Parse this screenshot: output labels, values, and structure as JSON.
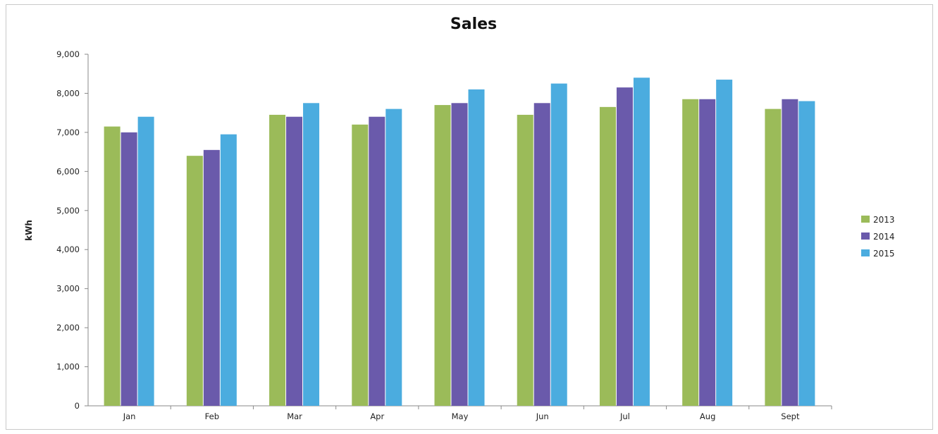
{
  "chart_data": {
    "type": "bar",
    "title": "Sales",
    "xlabel": "",
    "ylabel": "kWh",
    "ylim": [
      0,
      9000
    ],
    "yticks": [
      0,
      1000,
      2000,
      3000,
      4000,
      5000,
      6000,
      7000,
      8000,
      9000
    ],
    "ytick_labels": [
      "0",
      "1,000",
      "2,000",
      "3,000",
      "4,000",
      "5,000",
      "6,000",
      "7,000",
      "8,000",
      "9,000"
    ],
    "grid": false,
    "legend_position": "right",
    "categories": [
      "Jan",
      "Feb",
      "Mar",
      "Apr",
      "May",
      "Jun",
      "Jul",
      "Aug",
      "Sept"
    ],
    "series": [
      {
        "name": "2013",
        "color": "#9bbb59",
        "values": [
          7150,
          6400,
          7450,
          7200,
          7700,
          7450,
          7650,
          7850,
          7600
        ]
      },
      {
        "name": "2014",
        "color": "#6a5aab",
        "values": [
          7000,
          6550,
          7400,
          7400,
          7750,
          7750,
          8150,
          7850,
          7850
        ]
      },
      {
        "name": "2015",
        "color": "#4bacdf",
        "values": [
          7400,
          6950,
          7750,
          7600,
          8100,
          8250,
          8400,
          8350,
          7800
        ]
      }
    ]
  }
}
